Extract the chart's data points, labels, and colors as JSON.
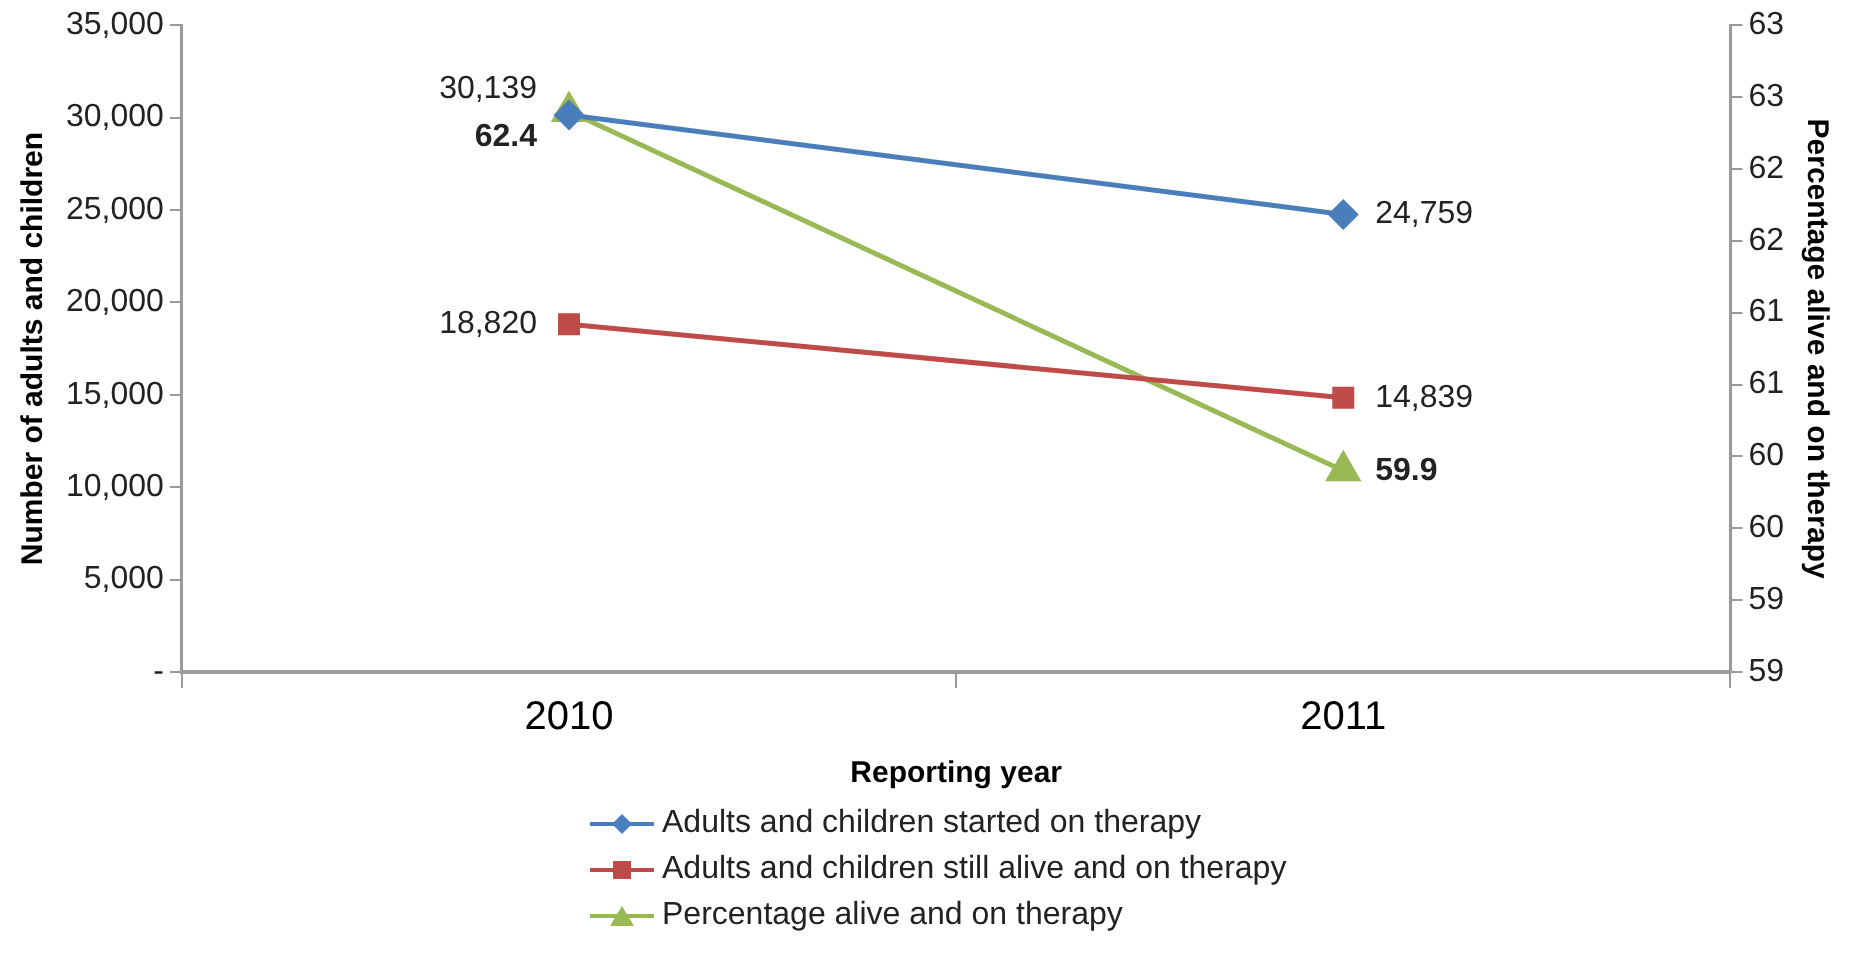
{
  "chart_data": {
    "type": "line",
    "xlabel": "Reporting year",
    "ylabel": "Number of adults and children",
    "y2label": "Percentage alive and on therapy",
    "categories": [
      "2010",
      "2011"
    ],
    "series": [
      {
        "name": "Adults and children started on therapy",
        "color": "#4a7ebb",
        "marker": "diamond",
        "values": [
          30139,
          24759
        ],
        "value_labels": [
          "30,139",
          "24,759"
        ]
      },
      {
        "name": "Adults and children still alive and on therapy",
        "color": "#be4b48",
        "marker": "square",
        "values": [
          18820,
          14839
        ],
        "value_labels": [
          "18,820",
          "14,839"
        ]
      },
      {
        "name": "Percentage alive and on therapy",
        "color": "#98b954",
        "marker": "triangle",
        "axis": "y2",
        "values": [
          62.4,
          59.9
        ],
        "value_labels": [
          "62.4",
          "59.9"
        ]
      }
    ],
    "ylim": [
      0,
      35000
    ],
    "yticks": [
      {
        "value": 0,
        "label": "-"
      },
      {
        "value": 5000,
        "label": "5,000"
      },
      {
        "value": 10000,
        "label": "10,000"
      },
      {
        "value": 15000,
        "label": "15,000"
      },
      {
        "value": 20000,
        "label": "20,000"
      },
      {
        "value": 25000,
        "label": "25,000"
      },
      {
        "value": 30000,
        "label": "30,000"
      },
      {
        "value": 35000,
        "label": "35,000"
      }
    ],
    "y2lim": [
      58.5,
      63
    ],
    "y2ticks": [
      {
        "value": 58.5,
        "label": "59"
      },
      59,
      {
        "value": 59.5,
        "label": "60"
      },
      60,
      {
        "value": 60.5,
        "label": "61"
      },
      61,
      {
        "value": 61.5,
        "label": "62"
      },
      62,
      {
        "value": 62.5,
        "label": "63"
      },
      63
    ],
    "grid": false,
    "legend": "bottom",
    "line_style": "solid"
  }
}
